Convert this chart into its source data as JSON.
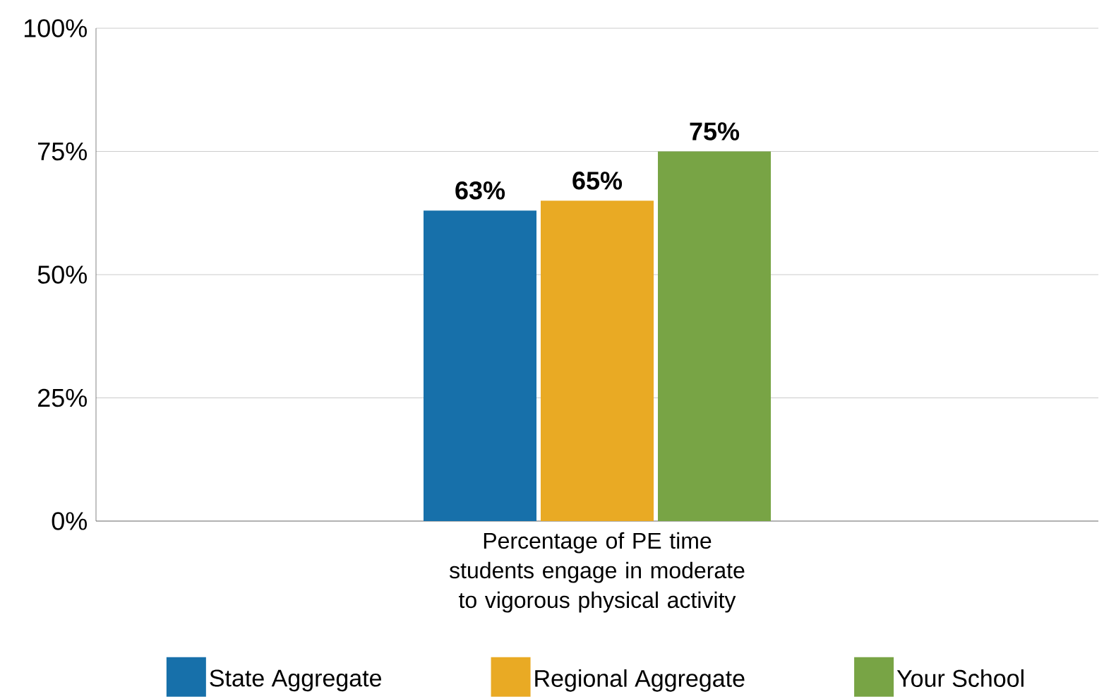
{
  "chart_data": {
    "type": "bar",
    "categories": [
      "Percentage of PE time students engage in moderate to vigorous physical activity"
    ],
    "series": [
      {
        "name": "State Aggregate",
        "color": "#1770aa",
        "values": [
          63
        ],
        "value_labels": [
          "63%"
        ]
      },
      {
        "name": "Regional Aggregate",
        "color": "#e9aa24",
        "values": [
          65
        ],
        "value_labels": [
          "65%"
        ]
      },
      {
        "name": "Your School",
        "color": "#78a445",
        "values": [
          75
        ],
        "value_labels": [
          "75%"
        ]
      }
    ],
    "ylim": [
      0,
      100
    ],
    "yticks": [
      {
        "value": 0,
        "label": "0%"
      },
      {
        "value": 25,
        "label": "25%"
      },
      {
        "value": 50,
        "label": "50%"
      },
      {
        "value": 75,
        "label": "75%"
      },
      {
        "value": 100,
        "label": "100%"
      }
    ],
    "grid": "y",
    "legend": "bottom"
  }
}
